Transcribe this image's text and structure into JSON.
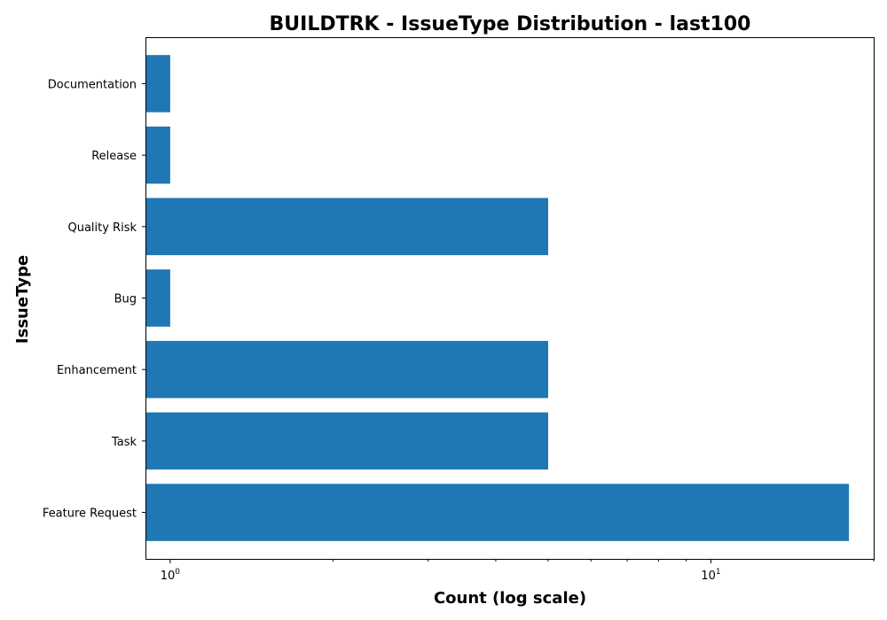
{
  "chart_data": {
    "type": "bar",
    "orientation": "horizontal",
    "title": "BUILDTRK - IssueType Distribution - last100",
    "xlabel": "Count (log scale)",
    "ylabel": "IssueType",
    "xscale": "log",
    "xlim": [
      0.9,
      20
    ],
    "categories": [
      "Feature Request",
      "Task",
      "Enhancement",
      "Bug",
      "Quality Risk",
      "Release",
      "Documentation"
    ],
    "values": [
      18,
      5,
      5,
      1,
      5,
      1,
      1
    ],
    "bar_color": "#1f77b4",
    "grid": false,
    "major_ticks": [
      {
        "value": 1,
        "base": "10",
        "exponent": "0"
      },
      {
        "value": 10,
        "base": "10",
        "exponent": "1"
      }
    ],
    "minor_ticks": [
      2,
      3,
      4,
      5,
      6,
      7,
      8,
      9,
      20
    ]
  }
}
